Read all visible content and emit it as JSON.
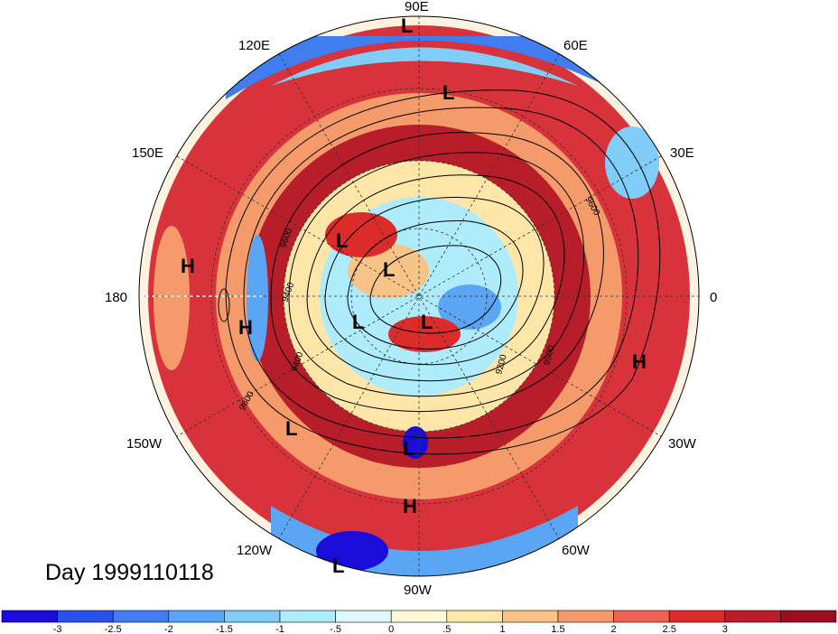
{
  "title": "Day 1999110118",
  "map": {
    "projection": "north-polar-stereographic",
    "longitude_labels": [
      "90E",
      "60E",
      "30E",
      "0",
      "30W",
      "60W",
      "90W",
      "120W",
      "150W",
      "180",
      "150E",
      "120E"
    ],
    "pressure_centers": [
      {
        "type": "L"
      },
      {
        "type": "L"
      },
      {
        "type": "L"
      },
      {
        "type": "L"
      },
      {
        "type": "L"
      },
      {
        "type": "L"
      },
      {
        "type": "L"
      },
      {
        "type": "L"
      },
      {
        "type": "L"
      },
      {
        "type": "H"
      },
      {
        "type": "H"
      },
      {
        "type": "H"
      },
      {
        "type": "H"
      }
    ],
    "contour_labels": [
      "9600",
      "9600",
      "9400",
      "9400",
      "9200",
      "9500",
      "9600"
    ]
  },
  "colorbar": {
    "colors": [
      "#1a0dd9",
      "#2a52e6",
      "#3f7df0",
      "#5aa6f5",
      "#7fcdf8",
      "#aeecfb",
      "#dcf7fd",
      "#fdf9d4",
      "#fde6a8",
      "#f8c386",
      "#f49a6b",
      "#ec6451",
      "#dc2b2b",
      "#b81e2a",
      "#9a0e1f"
    ],
    "tick_labels": [
      "-3",
      "-2.5",
      "-2",
      "-1.5",
      "-1",
      "-.5",
      "0",
      ".5",
      "1",
      "1.5",
      "2",
      "2.5",
      "3"
    ]
  }
}
